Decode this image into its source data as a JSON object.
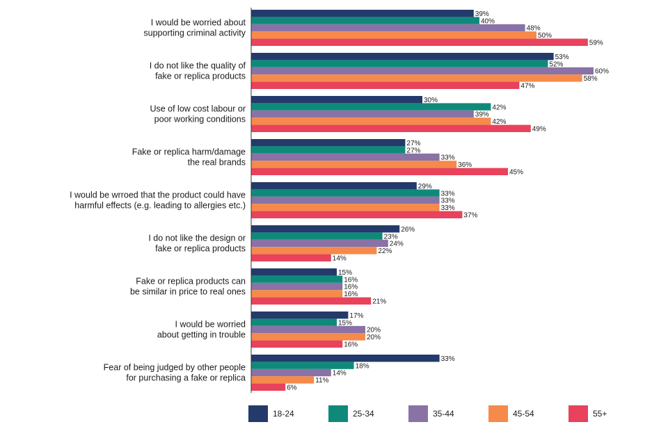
{
  "chart_data": {
    "type": "bar",
    "orientation": "horizontal",
    "categories": [
      [
        "I would be worried about",
        "supporting criminal activity"
      ],
      [
        "I do not like the quality of",
        "fake or replica products"
      ],
      [
        "Use of low cost labour or",
        "poor working conditions"
      ],
      [
        "Fake or replica harm/damage",
        "the real brands"
      ],
      [
        "I would be wrroed that the product could have",
        "harmful effects (e.g. leading to allergies etc.)"
      ],
      [
        "I do not like the design or",
        "fake or replica products"
      ],
      [
        "Fake or replica products can",
        "be similar in price to real ones"
      ],
      [
        "I would be worried",
        "about getting in trouble"
      ],
      [
        "Fear of being judged by other people",
        "for purchasing a fake or replica"
      ]
    ],
    "series": [
      {
        "name": "18-24",
        "color": "#243a6b",
        "values": [
          39,
          53,
          30,
          27,
          29,
          26,
          15,
          17,
          33
        ]
      },
      {
        "name": "25-34",
        "color": "#0f8a7a",
        "values": [
          40,
          52,
          42,
          27,
          33,
          23,
          16,
          15,
          18
        ]
      },
      {
        "name": "35-44",
        "color": "#8a72a6",
        "values": [
          48,
          60,
          39,
          33,
          33,
          24,
          16,
          20,
          14
        ]
      },
      {
        "name": "45-54",
        "color": "#f58a4a",
        "values": [
          50,
          58,
          42,
          36,
          33,
          22,
          16,
          20,
          11
        ]
      },
      {
        "name": "55+",
        "color": "#e8425c",
        "values": [
          59,
          47,
          49,
          45,
          37,
          14,
          21,
          16,
          6
        ]
      }
    ],
    "value_suffix": "%",
    "xlim": [
      0,
      60
    ],
    "grid": false,
    "legend_position": "bottom"
  }
}
